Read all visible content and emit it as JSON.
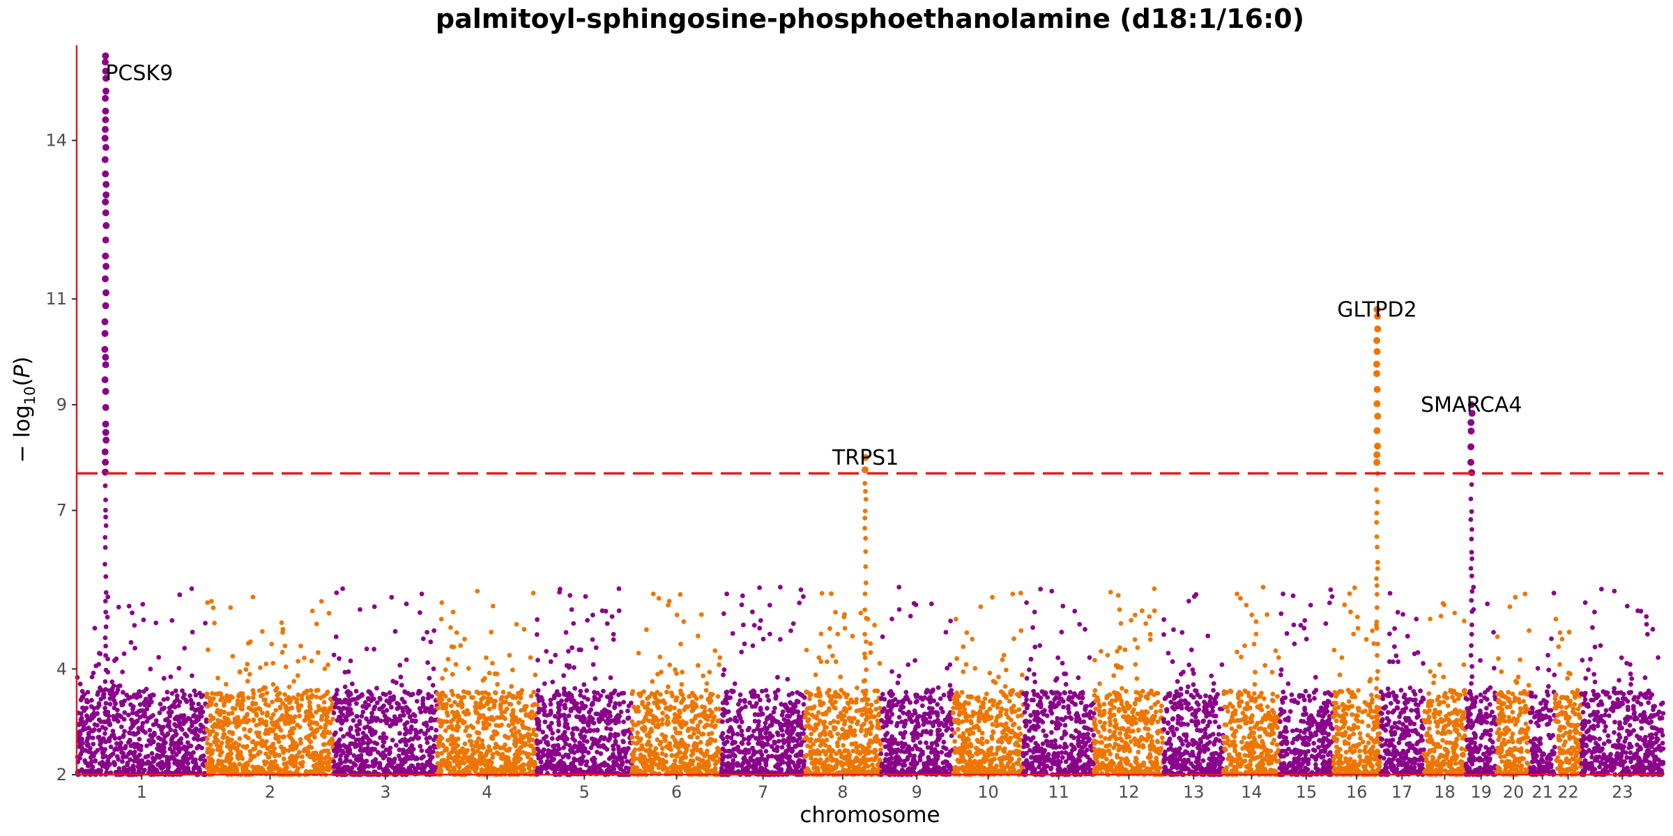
{
  "chart_data": {
    "type": "scatter",
    "subtype": "manhattan",
    "title": "palmitoyl-sphingosine-phosphoethanolamine (d18:1/16:0)",
    "xlabel": "chromosome",
    "ylabel": "− log10(P)",
    "ylim": [
      2,
      15.8
    ],
    "yticks": [
      2,
      4,
      7,
      9,
      11,
      14
    ],
    "threshold": 7.7,
    "colors": {
      "odd": "#8B008B",
      "even": "#EE7600",
      "threshold": "#E41A1C",
      "axis": "#E41A1C"
    },
    "chromosomes": [
      {
        "label": "1",
        "len": 248
      },
      {
        "label": "2",
        "len": 242
      },
      {
        "label": "3",
        "len": 198
      },
      {
        "label": "4",
        "len": 190
      },
      {
        "label": "5",
        "len": 181
      },
      {
        "label": "6",
        "len": 171
      },
      {
        "label": "7",
        "len": 159
      },
      {
        "label": "8",
        "len": 145
      },
      {
        "label": "9",
        "len": 138
      },
      {
        "label": "10",
        "len": 134
      },
      {
        "label": "11",
        "len": 135
      },
      {
        "label": "12",
        "len": 133
      },
      {
        "label": "13",
        "len": 114
      },
      {
        "label": "14",
        "len": 107
      },
      {
        "label": "15",
        "len": 102
      },
      {
        "label": "16",
        "len": 90
      },
      {
        "label": "17",
        "len": 83
      },
      {
        "label": "18",
        "len": 80
      },
      {
        "label": "19",
        "len": 59
      },
      {
        "label": "20",
        "len": 64
      },
      {
        "label": "21",
        "len": 47
      },
      {
        "label": "22",
        "len": 51
      },
      {
        "label": "23",
        "len": 156
      }
    ],
    "peaks": [
      {
        "chr": "1",
        "pos": 55,
        "top": 15.6,
        "label": "PCSK9"
      },
      {
        "chr": "8",
        "pos": 116,
        "top": 8.0,
        "label": "TRPS1"
      },
      {
        "chr": "16",
        "pos": 84,
        "top": 10.8,
        "label": "GLTPD2"
      },
      {
        "chr": "19",
        "pos": 11,
        "top": 9.0,
        "label": "SMARCA4"
      }
    ]
  }
}
